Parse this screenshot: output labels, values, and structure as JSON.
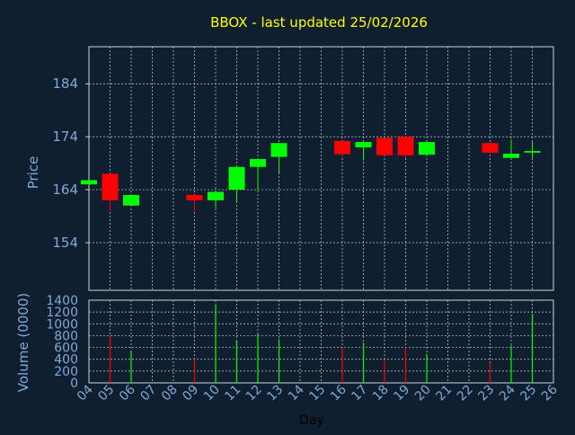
{
  "title": "BBOX - last updated 25/02/2026",
  "colors": {
    "background": "#0f1f2f",
    "title": "#ffff00",
    "axis_text": "#7fa9d6",
    "label_text": "#7fa9d6",
    "xlabel_text": "#000000",
    "grid": "#d0d0d0",
    "up": "#00ff00",
    "down": "#ff0000"
  },
  "chart_data": [
    {
      "type": "candlestick",
      "ylabel": "Price",
      "ylim": [
        145,
        191
      ],
      "yticks": [
        154,
        164,
        174,
        184
      ],
      "grid": true,
      "candles": [
        {
          "day": "04",
          "open": 165.0,
          "close": 165.8,
          "high": 165.8,
          "low": 165.0
        },
        {
          "day": "05",
          "open": 167.0,
          "close": 162.0,
          "high": 167.0,
          "low": 160.0
        },
        {
          "day": "06",
          "open": 161.0,
          "close": 163.0,
          "high": 163.0,
          "low": 161.0
        },
        {
          "day": "09",
          "open": 163.0,
          "close": 162.0,
          "high": 163.0,
          "low": 160.0
        },
        {
          "day": "10",
          "open": 162.0,
          "close": 163.6,
          "high": 163.6,
          "low": 160.5
        },
        {
          "day": "11",
          "open": 164.0,
          "close": 168.3,
          "high": 168.3,
          "low": 161.5
        },
        {
          "day": "12",
          "open": 168.3,
          "close": 169.8,
          "high": 169.8,
          "low": 164.0
        },
        {
          "day": "13",
          "open": 170.2,
          "close": 172.8,
          "high": 172.8,
          "low": 167.2
        },
        {
          "day": "16",
          "open": 173.2,
          "close": 170.7,
          "high": 173.2,
          "low": 170.2
        },
        {
          "day": "17",
          "open": 172.0,
          "close": 173.0,
          "high": 173.0,
          "low": 169.5
        },
        {
          "day": "18",
          "open": 173.8,
          "close": 170.5,
          "high": 173.8,
          "low": 170.5
        },
        {
          "day": "19",
          "open": 174.0,
          "close": 170.5,
          "high": 174.0,
          "low": 170.0
        },
        {
          "day": "20",
          "open": 170.6,
          "close": 173.0,
          "high": 173.0,
          "low": 170.6
        },
        {
          "day": "23",
          "open": 172.8,
          "close": 171.0,
          "high": 172.8,
          "low": 171.0
        },
        {
          "day": "24",
          "open": 170.0,
          "close": 170.8,
          "high": 173.5,
          "low": 170.0
        },
        {
          "day": "25",
          "open": 171.0,
          "close": 171.3,
          "high": 173.0,
          "low": 170.0
        }
      ]
    },
    {
      "type": "bar",
      "ylabel": "Volume (0000)",
      "xlabel": "Day",
      "ylim": [
        0,
        1400
      ],
      "yticks": [
        0,
        200,
        400,
        600,
        800,
        1000,
        1200,
        1400
      ],
      "x_tick_labels": [
        "04",
        "05",
        "06",
        "07",
        "08",
        "09",
        "10",
        "11",
        "12",
        "13",
        "14",
        "15",
        "16",
        "17",
        "18",
        "19",
        "20",
        "21",
        "22",
        "23",
        "24",
        "25",
        "26"
      ],
      "grid": true,
      "volumes": [
        {
          "day": "05",
          "value": 800,
          "direction": "down"
        },
        {
          "day": "06",
          "value": 540,
          "direction": "up"
        },
        {
          "day": "09",
          "value": 410,
          "direction": "down"
        },
        {
          "day": "10",
          "value": 1320,
          "direction": "up"
        },
        {
          "day": "11",
          "value": 720,
          "direction": "up"
        },
        {
          "day": "12",
          "value": 820,
          "direction": "up"
        },
        {
          "day": "13",
          "value": 740,
          "direction": "up"
        },
        {
          "day": "16",
          "value": 600,
          "direction": "down"
        },
        {
          "day": "17",
          "value": 680,
          "direction": "up"
        },
        {
          "day": "18",
          "value": 380,
          "direction": "down"
        },
        {
          "day": "19",
          "value": 600,
          "direction": "down"
        },
        {
          "day": "20",
          "value": 490,
          "direction": "up"
        },
        {
          "day": "23",
          "value": 330,
          "direction": "down"
        },
        {
          "day": "24",
          "value": 630,
          "direction": "up"
        },
        {
          "day": "25",
          "value": 1170,
          "direction": "up"
        }
      ]
    }
  ]
}
